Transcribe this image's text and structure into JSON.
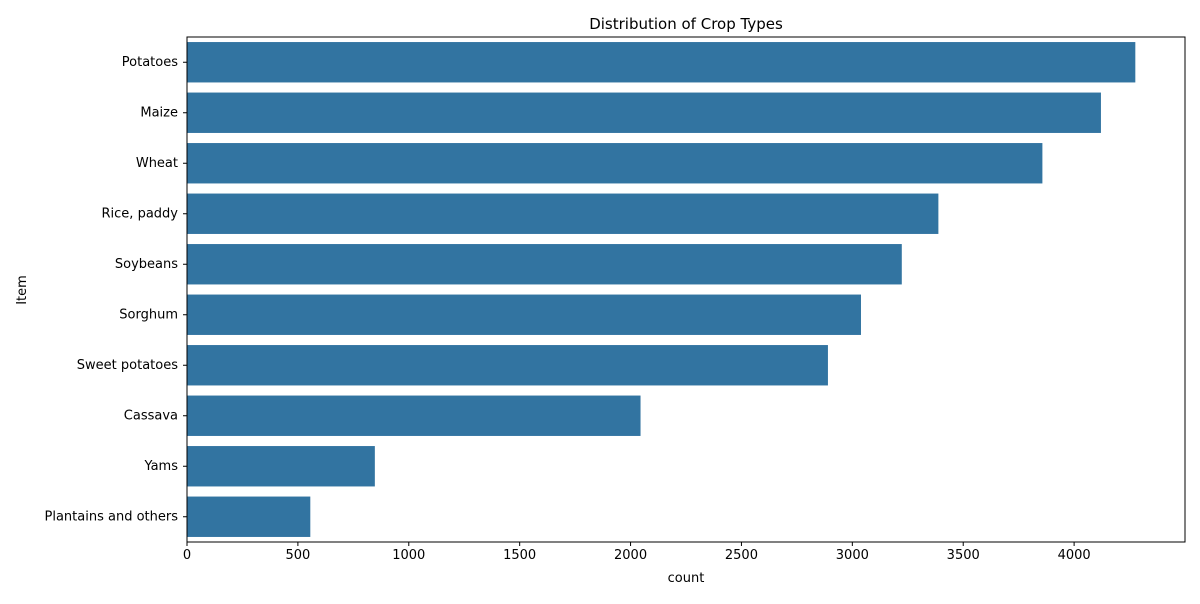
{
  "chart_data": {
    "type": "bar",
    "orientation": "horizontal",
    "title": "Distribution of Crop Types",
    "xlabel": "count",
    "ylabel": "Item",
    "categories": [
      "Potatoes",
      "Maize",
      "Wheat",
      "Rice, paddy",
      "Soybeans",
      "Sorghum",
      "Sweet potatoes",
      "Cassava",
      "Yams",
      "Plantains and others"
    ],
    "values": [
      4276,
      4121,
      3857,
      3388,
      3223,
      3039,
      2890,
      2045,
      847,
      556
    ],
    "xlim": [
      0,
      4500
    ],
    "xticks": [
      "0",
      "500",
      "1000",
      "1500",
      "2000",
      "2500",
      "3000",
      "3500",
      "4000"
    ],
    "xtick_values": [
      0,
      500,
      1000,
      1500,
      2000,
      2500,
      3000,
      3500,
      4000
    ],
    "grid": false,
    "legend": "none",
    "bar_color": "#3274a1"
  }
}
